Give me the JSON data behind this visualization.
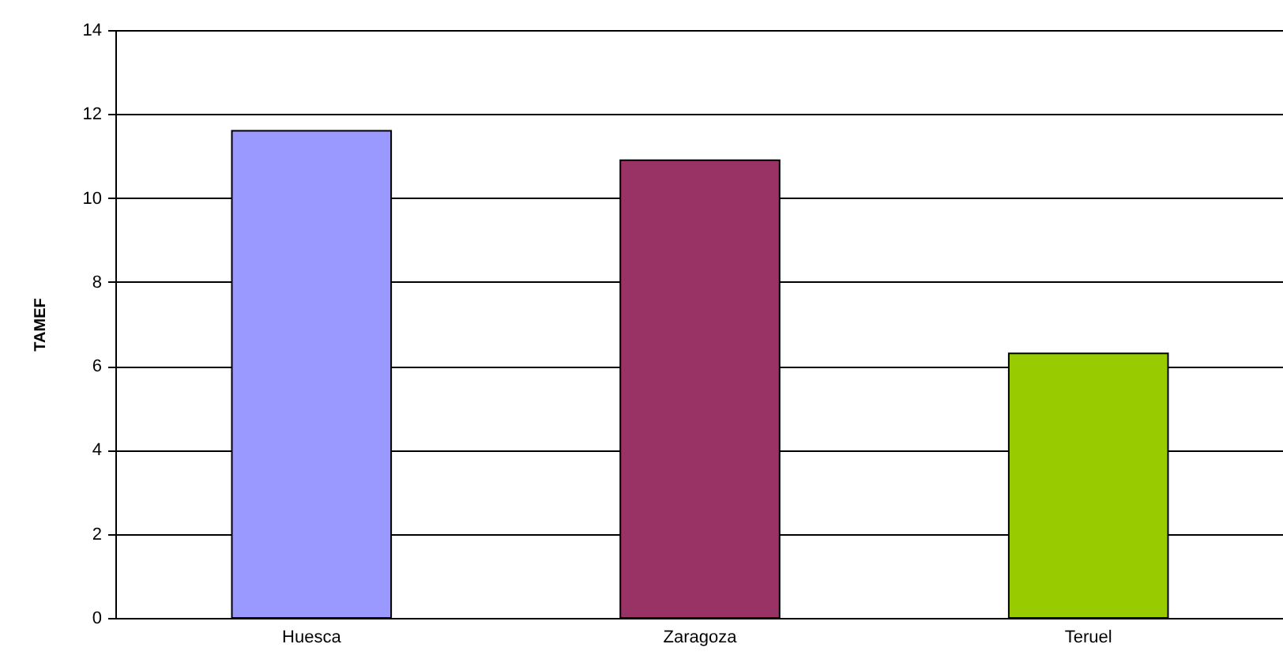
{
  "chart_data": {
    "type": "bar",
    "ylabel": "TAMEF",
    "categories": [
      "Huesca",
      "Zaragoza",
      "Teruel"
    ],
    "values": [
      11.6,
      10.9,
      6.3
    ],
    "colors": [
      "#9999ff",
      "#993366",
      "#99cc00"
    ],
    "ylim": [
      0,
      14
    ],
    "yticks": [
      0,
      2,
      4,
      6,
      8,
      10,
      12,
      14
    ],
    "grid": "y"
  }
}
